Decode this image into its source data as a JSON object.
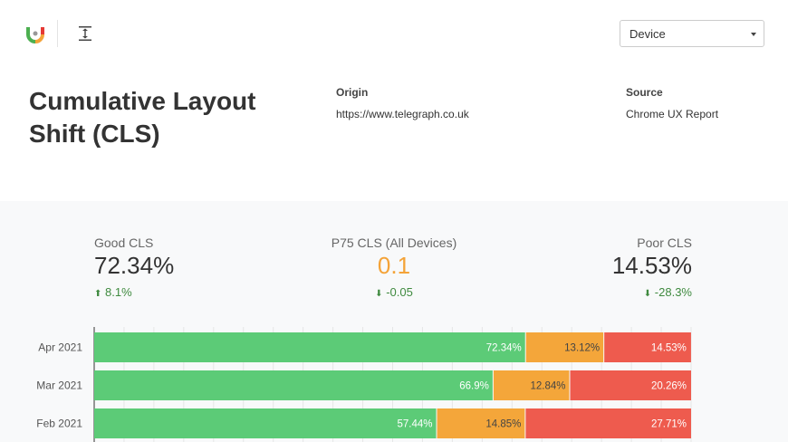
{
  "header": {
    "device_select": "Device"
  },
  "page": {
    "title_line1": "Cumulative Layout",
    "title_line2": "Shift (CLS)",
    "origin_label": "Origin",
    "origin_value": "https://www.telegraph.co.uk",
    "source_label": "Source",
    "source_value": "Chrome UX Report"
  },
  "kpis": {
    "good": {
      "label": "Good CLS",
      "value": "72.34%",
      "delta": "8.1%",
      "arrow": "up"
    },
    "p75": {
      "label": "P75 CLS (All Devices)",
      "value": "0.1",
      "delta": "-0.05",
      "arrow": "down",
      "color": "#f4a338"
    },
    "poor": {
      "label": "Poor CLS",
      "value": "14.53%",
      "delta": "-28.3%",
      "arrow": "down"
    }
  },
  "chart_data": {
    "type": "bar",
    "orientation": "horizontal",
    "stacked": true,
    "categories": [
      "Apr 2021",
      "Mar 2021",
      "Feb 2021"
    ],
    "series": [
      {
        "values": [
          72.34,
          66.9,
          57.44
        ],
        "color": "#5ccb77"
      },
      {
        "values": [
          13.12,
          12.84,
          14.85
        ],
        "color": "#f4a63a"
      },
      {
        "values": [
          14.53,
          20.26,
          27.71
        ],
        "color": "#ee5b4e"
      }
    ],
    "labels": [
      [
        "72.34%",
        "13.12%",
        "14.53%"
      ],
      [
        "66.9%",
        "12.84%",
        "20.26%"
      ],
      [
        "57.44%",
        "14.85%",
        "27.71%"
      ]
    ],
    "xlim": [
      0,
      100
    ],
    "grid": true
  }
}
